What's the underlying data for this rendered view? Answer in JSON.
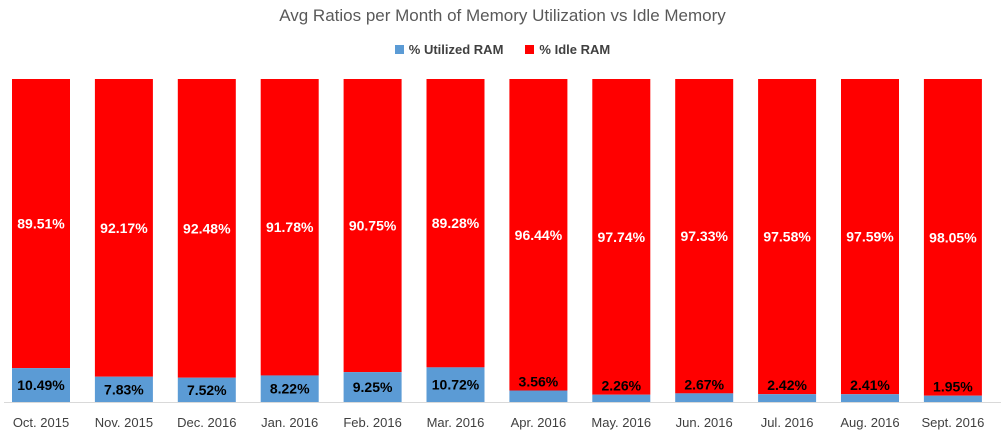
{
  "chart_data": {
    "type": "bar",
    "stacked": true,
    "title": "Avg Ratios per Month of Memory Utilization vs Idle Memory",
    "categories": [
      "Oct. 2015",
      "Nov. 2015",
      "Dec. 2016",
      "Jan. 2016",
      "Feb. 2016",
      "Mar. 2016",
      "Apr. 2016",
      "May. 2016",
      "Jun. 2016",
      "Jul. 2016",
      "Aug. 2016",
      "Sept. 2016"
    ],
    "series": [
      {
        "name": "% Utilized RAM",
        "color": "#5b9bd5",
        "values": [
          10.49,
          7.83,
          7.52,
          8.22,
          9.25,
          10.72,
          3.56,
          2.26,
          2.67,
          2.42,
          2.41,
          1.95
        ],
        "labels": [
          "10.49%",
          "7.83%",
          "7.52%",
          "8.22%",
          "9.25%",
          "10.72%",
          "3.56%",
          "2.26%",
          "2.67%",
          "2.42%",
          "2.41%",
          "1.95%"
        ]
      },
      {
        "name": "% Idle RAM",
        "color": "#ff0000",
        "values": [
          89.51,
          92.17,
          92.48,
          91.78,
          90.75,
          89.28,
          96.44,
          97.74,
          97.33,
          97.58,
          97.59,
          98.05
        ],
        "labels": [
          "89.51%",
          "92.17%",
          "92.48%",
          "91.78%",
          "90.75%",
          "89.28%",
          "96.44%",
          "97.74%",
          "97.33%",
          "97.58%",
          "97.59%",
          "98.05%"
        ]
      }
    ],
    "ylim": [
      0,
      100
    ],
    "legend_position": "top",
    "grid": false,
    "xlabel": "",
    "ylabel": ""
  }
}
